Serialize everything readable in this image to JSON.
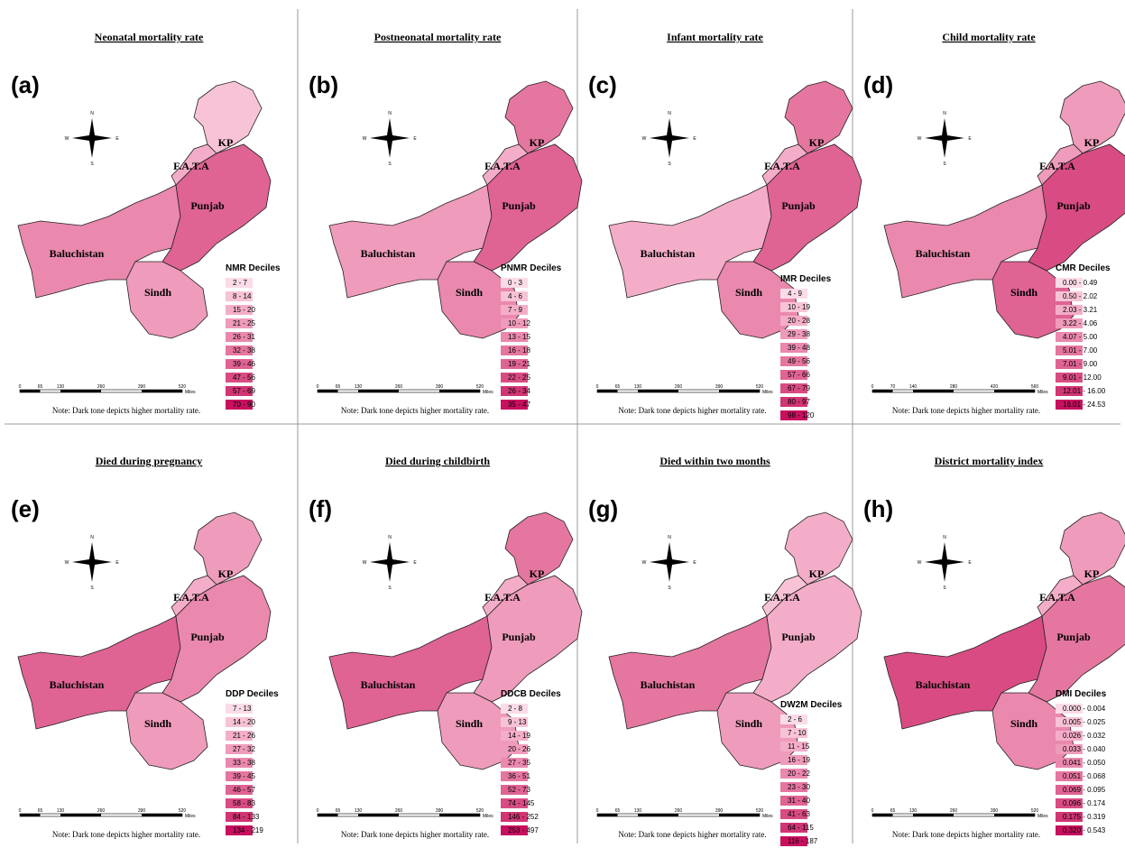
{
  "legend_colors": [
    "#fbdbe7",
    "#f8c3d6",
    "#f4adc8",
    "#ef9bbb",
    "#ea88ae",
    "#e576a0",
    "#df6393",
    "#d84c83",
    "#d03574",
    "#c8105f"
  ],
  "regions": [
    "Baluchistan",
    "Punjab",
    "Sindh",
    "KP",
    "F.A.T.A"
  ],
  "compass": [
    "N",
    "E",
    "S",
    "W"
  ],
  "scale_unit": "Miles",
  "note": "Note: Dark tone depicts higher mortality rate.",
  "panels": [
    {
      "label": "(a)",
      "title": "Neonatal mortality rate",
      "legend_title": "NMR Deciles",
      "legend": [
        "2 - 7",
        "8 - 14",
        "15 - 20",
        "21 - 25",
        "26 - 31",
        "32 - 38",
        "39 - 46",
        "47 - 56",
        "57 - 69",
        "70 - 90"
      ],
      "scale": [
        0,
        65,
        130,
        260,
        390,
        520
      ],
      "shades": [
        4,
        6,
        3,
        1,
        2
      ]
    },
    {
      "label": "(b)",
      "title": "Postneonatal mortality rate",
      "legend_title": "PNMR Deciles",
      "legend": [
        "0 - 3",
        "4 - 6",
        "7 - 9",
        "10 - 12",
        "13 - 15",
        "16 - 18",
        "19 - 21",
        "22 - 25",
        "26 - 34",
        "35 - 47"
      ],
      "scale": [
        0,
        65,
        130,
        260,
        390,
        520
      ],
      "shades": [
        3,
        6,
        4,
        5,
        2
      ]
    },
    {
      "label": "(c)",
      "title": "Infant mortality rate",
      "legend_title": "IMR Deciles",
      "legend": [
        "4 - 9",
        "10 - 19",
        "20 - 28",
        "29 - 38",
        "39 - 48",
        "49 - 56",
        "57 - 66",
        "67 - 79",
        "80 - 97",
        "98 - 120"
      ],
      "scale": [
        0,
        65,
        130,
        260,
        390,
        520
      ],
      "shades": [
        2,
        6,
        4,
        5,
        2
      ]
    },
    {
      "label": "(d)",
      "title": "Child mortality rate",
      "legend_title": "CMR Deciles",
      "legend": [
        "0.00 - 0.49",
        "0.50 - 2.02",
        "2.03 - 3.21",
        "3.22 - 4.06",
        "4.07 - 5.00",
        "5.01 - 7.00",
        "7.01 - 9.00",
        "9.01 - 12.00",
        "12.01 - 16.00",
        "16.01 - 24.53"
      ],
      "scale": [
        0,
        70,
        140,
        280,
        420,
        560
      ],
      "shades": [
        4,
        7,
        6,
        3,
        3
      ]
    },
    {
      "label": "(e)",
      "title": "Died during pregnancy",
      "legend_title": "DDP Deciles",
      "legend": [
        "7 - 13",
        "14 - 20",
        "21 - 26",
        "27 - 32",
        "33 - 38",
        "39 - 45",
        "46 - 57",
        "58 - 83",
        "84 - 133",
        "134 - 219"
      ],
      "scale": [
        0,
        65,
        130,
        260,
        390,
        520
      ],
      "shades": [
        6,
        4,
        3,
        3,
        2
      ]
    },
    {
      "label": "(f)",
      "title": "Died during childbirth",
      "legend_title": "DDCB Deciles",
      "legend": [
        "2 - 8",
        "9 - 13",
        "14 - 19",
        "20 - 26",
        "27 - 35",
        "36 - 51",
        "52 - 73",
        "74 - 145",
        "146 - 252",
        "253 - 497"
      ],
      "scale": [
        0,
        65,
        130,
        260,
        390,
        520
      ],
      "shades": [
        6,
        3,
        3,
        5,
        2
      ]
    },
    {
      "label": "(g)",
      "title": "Died within two months",
      "legend_title": "DW2M Deciles",
      "legend": [
        "2 - 6",
        "7 - 10",
        "11 - 15",
        "16 - 19",
        "20 - 22",
        "23 - 30",
        "31 - 40",
        "41 - 63",
        "64 - 115",
        "116 - 187"
      ],
      "scale": [
        0,
        65,
        130,
        260,
        390,
        520
      ],
      "shades": [
        5,
        2,
        3,
        2,
        1
      ]
    },
    {
      "label": "(h)",
      "title": "District mortality index",
      "legend_title": "DMI Deciles",
      "legend": [
        "0.000 - 0.004",
        "0.005 - 0.025",
        "0.026 - 0.032",
        "0.033 - 0.040",
        "0.041 - 0.050",
        "0.051 - 0.068",
        "0.069 - 0.095",
        "0.096 - 0.174",
        "0.175 - 0.319",
        "0.320 - 0.543"
      ],
      "scale": [
        0,
        65,
        130,
        260,
        390,
        520
      ],
      "shades": [
        7,
        5,
        4,
        3,
        2
      ]
    }
  ]
}
